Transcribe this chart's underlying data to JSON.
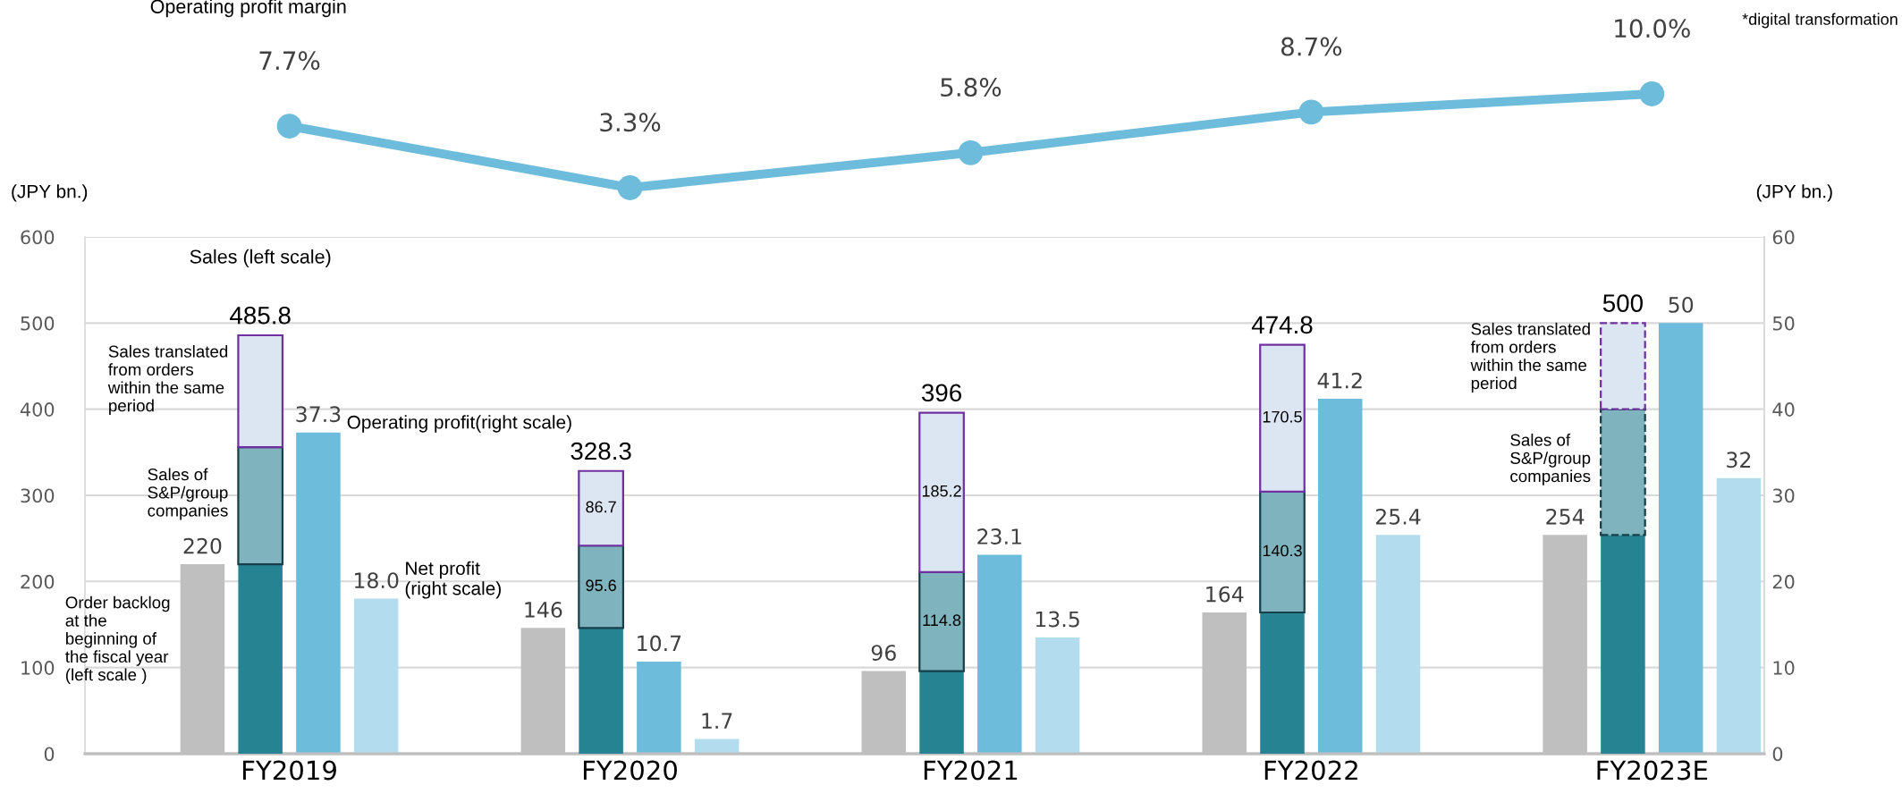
{
  "chart_data": [
    {
      "type": "line",
      "categories": [
        "FY2019",
        "FY2020",
        "FY2021",
        "FY2022",
        "FY2023E"
      ],
      "tick_labels": false,
      "marker": "circle",
      "line_style": "solid",
      "series": [
        {
          "name": "Operating profit margin",
          "color": "#6ebcdb",
          "values": [
            7.7,
            3.3,
            5.8,
            8.7,
            10.0
          ],
          "value_labels": [
            "7.7%",
            "3.3%",
            "5.8%",
            "8.7%",
            "10.0%"
          ]
        }
      ],
      "annotations": [
        "*digital transformation"
      ]
    },
    {
      "type": "bar",
      "categories": [
        "FY2019",
        "FY2020",
        "FY2021",
        "FY2022",
        "FY2023E"
      ],
      "ylabel": "(JPY bn.)",
      "y2label": "(JPY bn.)",
      "ylim": [
        0,
        600
      ],
      "yticks": [
        0,
        100,
        200,
        300,
        400,
        500,
        600
      ],
      "y2lim": [
        0,
        60
      ],
      "y2ticks": [
        0,
        10,
        20,
        30,
        40,
        50,
        60
      ],
      "grid": "y",
      "series": [
        {
          "name": "Order backlog\nat the\nbeginning of\nthe fiscal year\n(left scale )",
          "color": "#bfbfbf",
          "values": [
            220,
            146,
            96,
            164,
            254
          ],
          "value_labels": [
            "220",
            "146",
            "96",
            "164",
            "254"
          ]
        },
        {
          "name": "Operating profit(right scale)",
          "color": "#6ebcdb",
          "axis": "y2",
          "values": [
            37.3,
            10.7,
            23.1,
            41.2,
            50
          ],
          "value_labels": [
            "37.3",
            "10.7",
            "23.1",
            "41.2",
            "50"
          ]
        },
        {
          "name": "Net profit\n(right scale)",
          "color": "#b4dcef",
          "axis": "y2",
          "values": [
            18.0,
            1.7,
            13.5,
            25.4,
            32
          ],
          "value_labels": [
            "18.0",
            "1.7",
            "13.5",
            "25.4",
            "32"
          ]
        }
      ]
    },
    {
      "type": "bar",
      "stacked": true,
      "categories": [
        "FY2019",
        "FY2020",
        "FY2021",
        "FY2022",
        "FY2023E"
      ],
      "ylim": [
        0,
        600
      ],
      "tick_labels": false,
      "totals": [
        "485.8",
        "328.3",
        "396",
        "474.8",
        "500"
      ],
      "annotations": [
        "Sales (left scale)"
      ],
      "series": [
        {
          "color": "#268392",
          "values": [
            220,
            146,
            96,
            164,
            254
          ]
        },
        {
          "name": "Sales of\nS&P/group\ncompanies",
          "color": "#7fb3bd",
          "values": [
            136,
            95.6,
            114.8,
            140.3,
            null
          ],
          "value_labels": [
            null,
            "95.6",
            "114.8",
            "140.3",
            null
          ]
        },
        {
          "name": "Sales translated\nfrom orders\nwithin the same\nperiod",
          "color": "#dce6f2",
          "values": [
            129.8,
            86.7,
            185.2,
            170.5,
            null
          ],
          "value_labels": [
            null,
            "86.7",
            "185.2",
            "170.5",
            null
          ]
        },
        {
          "name": "Sales of\nS&P/group\ncompanies",
          "color": "#7fb3bd",
          "values": [
            null,
            null,
            null,
            null,
            146
          ],
          "line_style": "dashed"
        },
        {
          "name": "Sales translated\nfrom orders\nwithin the same\nperiod",
          "color": "#dce6f2",
          "values": [
            null,
            null,
            null,
            null,
            100
          ],
          "line_style": "dashed"
        }
      ]
    }
  ]
}
